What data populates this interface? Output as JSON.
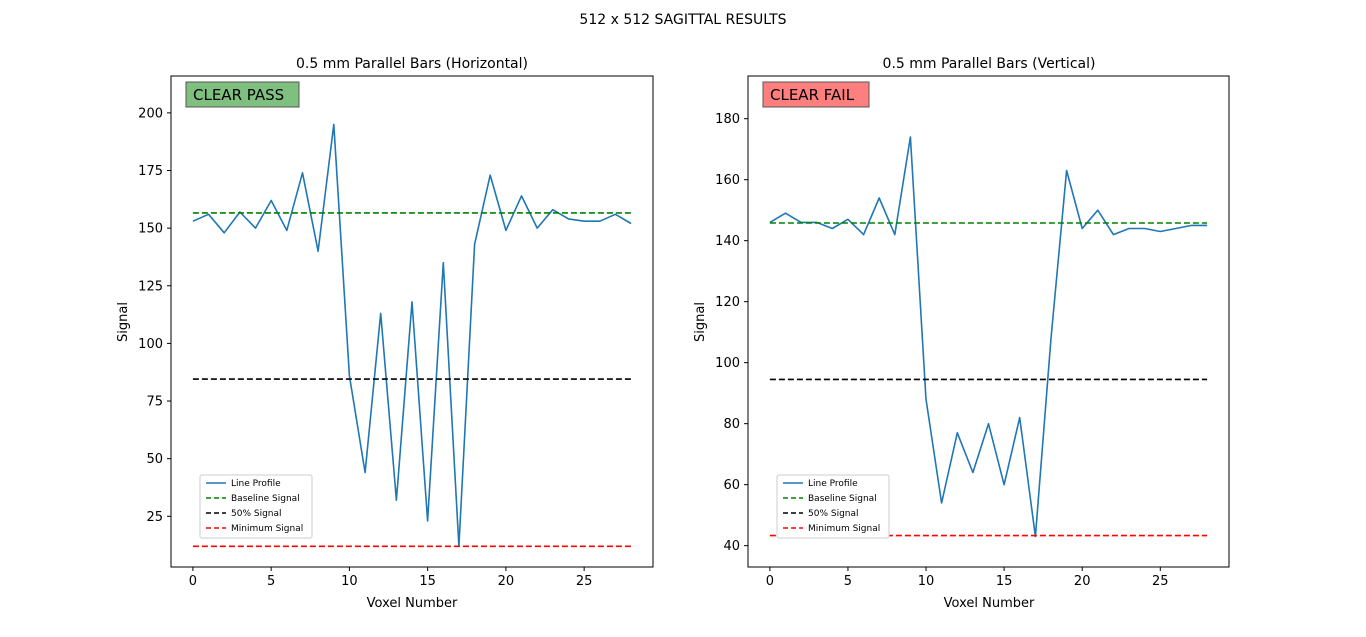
{
  "figure_title": "512 x 512 SAGITTAL RESULTS",
  "colors": {
    "line_profile": "#1f77b4",
    "baseline": "#008000",
    "fifty": "#000000",
    "minimum": "#ff0000",
    "pass_box": "#7fbf7f",
    "fail_box": "#ff7f7f"
  },
  "legend_labels": [
    "Line Profile",
    "Baseline Signal",
    "50% Signal",
    "Minimum Signal"
  ],
  "chart_data": [
    {
      "type": "line",
      "title": "0.5 mm Parallel Bars (Horizontal)",
      "xlabel": "Voxel Number",
      "ylabel": "Signal",
      "xlim": [
        -1.4,
        29.4
      ],
      "ylim": [
        3,
        216
      ],
      "xticks": [
        0,
        5,
        10,
        15,
        20,
        25
      ],
      "yticks": [
        25,
        50,
        75,
        100,
        125,
        150,
        175,
        200
      ],
      "grid": false,
      "legend_position": "lower-left",
      "status_label": "CLEAR PASS",
      "status": "pass",
      "series": [
        {
          "name": "Line Profile",
          "style": "solid",
          "x": [
            0,
            1,
            2,
            3,
            4,
            5,
            6,
            7,
            8,
            9,
            10,
            11,
            12,
            13,
            14,
            15,
            16,
            17,
            18,
            19,
            20,
            21,
            22,
            23,
            24,
            25,
            26,
            27,
            28
          ],
          "values": [
            153,
            156,
            148,
            157,
            150,
            162,
            149,
            174,
            140,
            195,
            86,
            44,
            113,
            32,
            118,
            23,
            135,
            12,
            143,
            173,
            149,
            164,
            150,
            158,
            154,
            153,
            153,
            156,
            152
          ]
        },
        {
          "name": "Baseline Signal",
          "style": "dashed",
          "x": [
            0,
            28
          ],
          "values": [
            156.6,
            156.6
          ]
        },
        {
          "name": "50% Signal",
          "style": "dashed",
          "x": [
            0,
            28
          ],
          "values": [
            84.5,
            84.5
          ]
        },
        {
          "name": "Minimum Signal",
          "style": "dashed",
          "x": [
            0,
            28
          ],
          "values": [
            12,
            12
          ]
        }
      ]
    },
    {
      "type": "line",
      "title": "0.5 mm Parallel Bars (Vertical)",
      "xlabel": "Voxel Number",
      "ylabel": "Signal",
      "xlim": [
        -1.4,
        29.4
      ],
      "ylim": [
        33,
        194
      ],
      "xticks": [
        0,
        5,
        10,
        15,
        20,
        25
      ],
      "yticks": [
        40,
        60,
        80,
        100,
        120,
        140,
        160,
        180
      ],
      "grid": false,
      "legend_position": "lower-left",
      "status_label": "CLEAR FAIL",
      "status": "fail",
      "series": [
        {
          "name": "Line Profile",
          "style": "solid",
          "x": [
            0,
            1,
            2,
            3,
            4,
            5,
            6,
            7,
            8,
            9,
            10,
            11,
            12,
            13,
            14,
            15,
            16,
            17,
            18,
            19,
            20,
            21,
            22,
            23,
            24,
            25,
            26,
            27,
            28
          ],
          "values": [
            146,
            149,
            146,
            146,
            144,
            147,
            142,
            154,
            142,
            174,
            88,
            54,
            77,
            64,
            80,
            60,
            82,
            43,
            108,
            163,
            144,
            150,
            142,
            144,
            144,
            143,
            144,
            145,
            145
          ]
        },
        {
          "name": "Baseline Signal",
          "style": "dashed",
          "x": [
            0,
            28
          ],
          "values": [
            145.8,
            145.8
          ]
        },
        {
          "name": "50% Signal",
          "style": "dashed",
          "x": [
            0,
            28
          ],
          "values": [
            94.5,
            94.5
          ]
        },
        {
          "name": "Minimum Signal",
          "style": "dashed",
          "x": [
            0,
            28
          ],
          "values": [
            43.3,
            43.3
          ]
        }
      ]
    }
  ]
}
